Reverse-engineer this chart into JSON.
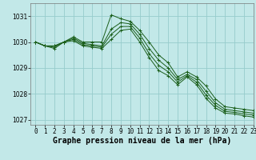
{
  "title": "Graphe pression niveau de la mer (hPa)",
  "background_color": "#c2e8e8",
  "grid_color": "#96cccc",
  "line_color": "#1a5e1a",
  "xlim": [
    -0.5,
    23
  ],
  "ylim": [
    1026.8,
    1031.5
  ],
  "yticks": [
    1027,
    1028,
    1029,
    1030,
    1031
  ],
  "xticks": [
    0,
    1,
    2,
    3,
    4,
    5,
    6,
    7,
    8,
    9,
    10,
    11,
    12,
    13,
    14,
    15,
    16,
    17,
    18,
    19,
    20,
    21,
    22,
    23
  ],
  "series": [
    [
      1030.0,
      1029.85,
      1029.85,
      1030.0,
      1030.2,
      1030.0,
      1030.0,
      1030.0,
      1031.05,
      1030.9,
      1030.8,
      1030.45,
      1030.0,
      1029.5,
      1029.2,
      1028.65,
      1028.85,
      1028.65,
      1028.3,
      1027.8,
      1027.5,
      1027.45,
      1027.4,
      1027.35
    ],
    [
      1030.0,
      1029.85,
      1029.85,
      1030.0,
      1030.15,
      1029.95,
      1029.9,
      1029.85,
      1030.5,
      1030.75,
      1030.7,
      1030.3,
      1029.75,
      1029.3,
      1029.0,
      1028.55,
      1028.75,
      1028.55,
      1028.1,
      1027.65,
      1027.4,
      1027.35,
      1027.3,
      1027.25
    ],
    [
      1030.0,
      1029.85,
      1029.8,
      1030.0,
      1030.1,
      1029.9,
      1029.85,
      1029.8,
      1030.3,
      1030.6,
      1030.6,
      1030.15,
      1029.55,
      1029.1,
      1028.85,
      1028.45,
      1028.7,
      1028.45,
      1027.95,
      1027.55,
      1027.32,
      1027.28,
      1027.22,
      1027.18
    ],
    [
      1030.0,
      1029.85,
      1029.75,
      1030.0,
      1030.05,
      1029.85,
      1029.8,
      1029.75,
      1030.1,
      1030.45,
      1030.5,
      1030.0,
      1029.4,
      1028.9,
      1028.7,
      1028.35,
      1028.65,
      1028.35,
      1027.82,
      1027.45,
      1027.25,
      1027.22,
      1027.15,
      1027.1
    ]
  ],
  "tick_fontsize": 5.5,
  "xlabel_fontsize": 7.0
}
